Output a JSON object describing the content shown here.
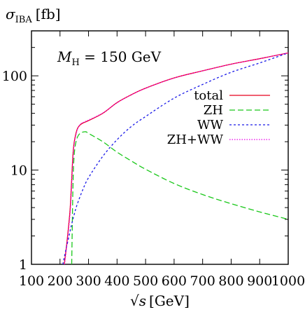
{
  "chart_data": {
    "type": "line",
    "title": "",
    "ylabel_main": "σ",
    "ylabel_sub": "IBA",
    "ylabel_unit": "[fb]",
    "xlabel_main": "√s",
    "xlabel_unit": "[GeV]",
    "annotation": {
      "main": "M",
      "sub": "H",
      "rest": " = 150 GeV"
    },
    "xlim": [
      100,
      1000
    ],
    "ylim": [
      1,
      300
    ],
    "yscale": "log",
    "x_ticks": [
      100,
      200,
      300,
      400,
      500,
      600,
      700,
      800,
      900,
      1000
    ],
    "x_tick_labels": [
      "100",
      "200",
      "300",
      "400",
      "500",
      "600",
      "700",
      "800",
      "900",
      "1000"
    ],
    "y_ticks": [
      1,
      10,
      100
    ],
    "y_tick_labels": [
      "1",
      "10",
      "100"
    ],
    "legend_position": "right",
    "series": [
      {
        "name": "total",
        "color": "#e8001c",
        "dash": "solid",
        "x": [
          215,
          225,
          235,
          240,
          245,
          250,
          260,
          270,
          280,
          300,
          350,
          400,
          450,
          500,
          600,
          700,
          800,
          900,
          1000
        ],
        "y": [
          1,
          1.8,
          3.7,
          7,
          14,
          20,
          27,
          30,
          31.5,
          33.5,
          40,
          52,
          63,
          74,
          95,
          113,
          133,
          152,
          175
        ]
      },
      {
        "name": "ZH",
        "color": "#1ac81a",
        "dash": "dashed",
        "x": [
          241,
          243,
          245,
          248,
          252,
          258,
          265,
          275,
          290,
          300,
          350,
          400,
          450,
          500,
          600,
          700,
          800,
          900,
          1000
        ],
        "y": [
          1,
          2.5,
          6,
          12,
          17,
          21,
          23.5,
          25,
          25.5,
          24.5,
          20,
          15.5,
          12.5,
          10.2,
          7.2,
          5.5,
          4.4,
          3.6,
          3.0
        ]
      },
      {
        "name": "WW",
        "color": "#1a1ae8",
        "dash": "dotted",
        "x": [
          210,
          220,
          230,
          240,
          250,
          260,
          280,
          300,
          350,
          400,
          450,
          500,
          600,
          700,
          800,
          900,
          1000
        ],
        "y": [
          1,
          1.4,
          1.9,
          2.6,
          3.4,
          4.3,
          6.2,
          8.3,
          14,
          21,
          29,
          37,
          58,
          81,
          109,
          137,
          175
        ]
      },
      {
        "name": "ZH+WW",
        "color": "#e800e8",
        "dash": "dotted-fine",
        "x": [
          216,
          226,
          236,
          241,
          246,
          251,
          261,
          271,
          281,
          301,
          351,
          401,
          451,
          501,
          601,
          701,
          801,
          901,
          1000
        ],
        "y": [
          1,
          1.8,
          3.7,
          7,
          14,
          20,
          27,
          30.5,
          32,
          34,
          40.5,
          52,
          63,
          74,
          95,
          113,
          133,
          152,
          175
        ]
      }
    ]
  }
}
